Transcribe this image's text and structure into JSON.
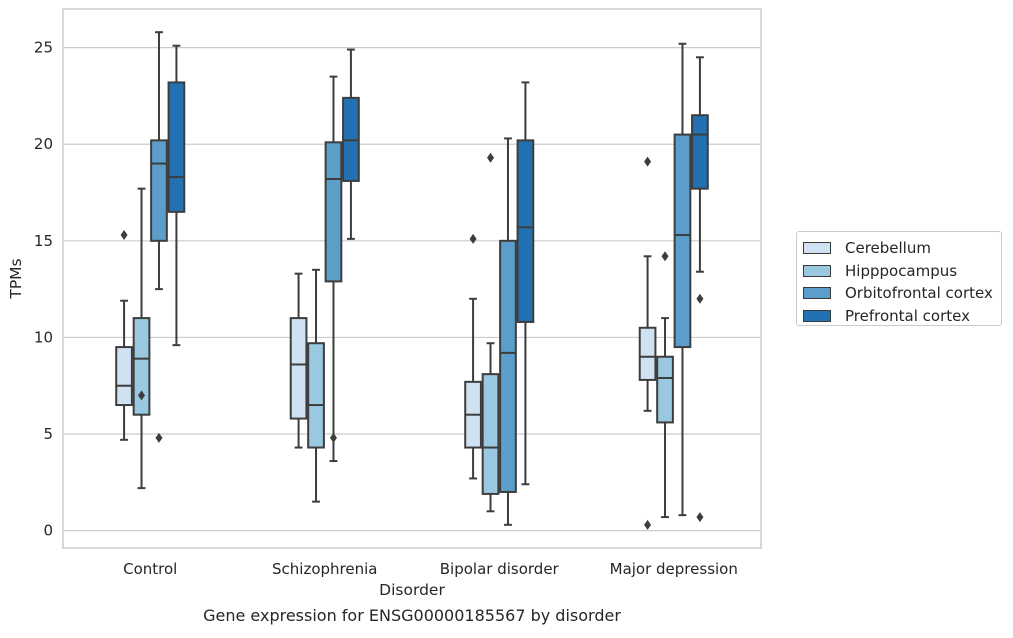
{
  "chart_data": {
    "type": "boxplot",
    "xlabel": "Disorder",
    "ylabel": "TPMs",
    "caption": "Gene expression for ENSG00000185567 by disorder",
    "ylim": [
      -0.9,
      27
    ],
    "yticks": [
      0,
      5,
      10,
      15,
      20,
      25
    ],
    "ytick_labels": [
      "0",
      "5",
      "10",
      "15",
      "20",
      "25"
    ],
    "grid": "horizontal",
    "legend_position": "right",
    "categories": [
      "Control",
      "Schizophrenia",
      "Bipolar disorder",
      "Major depression"
    ],
    "series": [
      {
        "name": "Cerebellum",
        "color": "#d0e1f2",
        "boxes": [
          {
            "whislo": 4.7,
            "q1": 6.5,
            "med": 7.5,
            "q3": 9.5,
            "whishi": 11.9,
            "fliers": [
              15.3
            ]
          },
          {
            "whislo": 4.3,
            "q1": 5.8,
            "med": 8.6,
            "q3": 11.0,
            "whishi": 13.3,
            "fliers": []
          },
          {
            "whislo": 2.7,
            "q1": 4.3,
            "med": 6.0,
            "q3": 7.7,
            "whishi": 12.0,
            "fliers": [
              15.1
            ]
          },
          {
            "whislo": 6.2,
            "q1": 7.8,
            "med": 9.0,
            "q3": 10.5,
            "whishi": 14.2,
            "fliers": [
              19.1,
              0.3
            ]
          }
        ]
      },
      {
        "name": "Hipppocampus",
        "color": "#9ac8e0",
        "boxes": [
          {
            "whislo": 2.2,
            "q1": 6.0,
            "med": 8.9,
            "q3": 11.0,
            "whishi": 17.7,
            "fliers": [
              7.0
            ]
          },
          {
            "whislo": 1.5,
            "q1": 4.3,
            "med": 6.5,
            "q3": 9.7,
            "whishi": 13.5,
            "fliers": []
          },
          {
            "whislo": 1.0,
            "q1": 1.9,
            "med": 4.3,
            "q3": 8.1,
            "whishi": 9.7,
            "fliers": [
              19.3
            ]
          },
          {
            "whislo": 0.7,
            "q1": 5.6,
            "med": 7.9,
            "q3": 9.0,
            "whishi": 11.0,
            "fliers": [
              14.2
            ]
          }
        ]
      },
      {
        "name": "Orbitofrontal cortex",
        "color": "#5a9ec9",
        "boxes": [
          {
            "whislo": 12.5,
            "q1": 15.0,
            "med": 19.0,
            "q3": 20.2,
            "whishi": 25.8,
            "fliers": [
              4.8
            ]
          },
          {
            "whislo": 3.6,
            "q1": 12.9,
            "med": 18.2,
            "q3": 20.1,
            "whishi": 23.5,
            "fliers": [
              4.8
            ]
          },
          {
            "whislo": 0.3,
            "q1": 2.0,
            "med": 9.2,
            "q3": 15.0,
            "whishi": 20.3,
            "fliers": []
          },
          {
            "whislo": 0.8,
            "q1": 9.5,
            "med": 15.3,
            "q3": 20.5,
            "whishi": 25.2,
            "fliers": []
          }
        ]
      },
      {
        "name": "Prefrontal cortex",
        "color": "#2271b3",
        "boxes": [
          {
            "whislo": 9.6,
            "q1": 16.5,
            "med": 18.3,
            "q3": 23.2,
            "whishi": 25.1,
            "fliers": []
          },
          {
            "whislo": 15.1,
            "q1": 18.1,
            "med": 20.2,
            "q3": 22.4,
            "whishi": 24.9,
            "fliers": []
          },
          {
            "whislo": 2.4,
            "q1": 10.8,
            "med": 15.7,
            "q3": 20.2,
            "whishi": 23.2,
            "fliers": []
          },
          {
            "whislo": 13.4,
            "q1": 17.7,
            "med": 20.5,
            "q3": 21.5,
            "whishi": 24.5,
            "fliers": [
              12.0,
              0.7
            ]
          }
        ]
      }
    ]
  }
}
